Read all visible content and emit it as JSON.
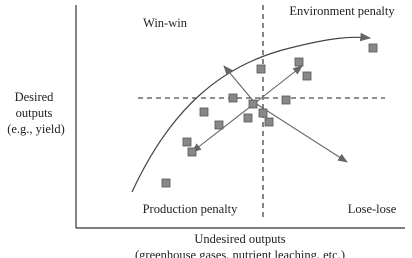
{
  "quadrants": {
    "top_left": "Win-win",
    "top_right": "Environment penalty",
    "bottom_left": "Production penalty",
    "bottom_right": "Lose-lose"
  },
  "y_axis": {
    "label_lines": [
      "Desired",
      "outputs",
      "(e.g., yield)"
    ]
  },
  "x_axis": {
    "label_lines": [
      "Undesired outputs",
      "(greenhouse gases, nutrient leaching, etc.)"
    ]
  }
}
